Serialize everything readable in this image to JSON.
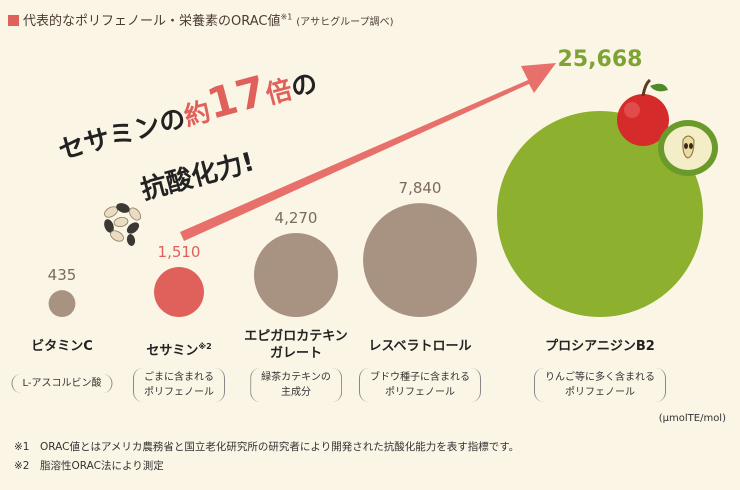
{
  "header": {
    "title": "代表的なポリフェノール・栄養素のORAC値",
    "title_note": "※1",
    "source": "(アサヒグループ調べ)"
  },
  "annotation": {
    "line1_prefix": "セサミンの",
    "line1_emph_a": "約",
    "line1_emph_b": "17",
    "line1_emph_c": "倍",
    "line1_suffix": "の",
    "line2": "抗酸化力!"
  },
  "chart_data": {
    "type": "bubble",
    "unit": "(μmolTE/mol)",
    "items": [
      {
        "name": "ビタミンC",
        "name_note": "",
        "value": 435,
        "value_label": "435",
        "desc_lines": [
          "L-アスコルビン酸"
        ],
        "color": "#a89282"
      },
      {
        "name": "セサミン",
        "name_note": "※2",
        "value": 1510,
        "value_label": "1,510",
        "desc_lines": [
          "ごまに含まれる",
          "ポリフェノール"
        ],
        "color": "#e0615b"
      },
      {
        "name_lines": [
          "エピガロカテキン",
          "ガレート"
        ],
        "name": "エピガロカテキンガレート",
        "name_note": "",
        "value": 4270,
        "value_label": "4,270",
        "desc_lines": [
          "緑茶カテキンの",
          "主成分"
        ],
        "color": "#a89282"
      },
      {
        "name": "レスベラトロール",
        "name_note": "",
        "value": 7840,
        "value_label": "7,840",
        "desc_lines": [
          "ブドウ種子に含まれる",
          "ポリフェノール"
        ],
        "color": "#a89282"
      },
      {
        "name": "プロシアニジンB2",
        "name_note": "",
        "value": 25668,
        "value_label": "25,668",
        "desc_lines": [
          "りんご等に多く含まれる",
          "ポリフェノール"
        ],
        "color": "#8db02e"
      }
    ]
  },
  "footnotes": [
    "※1　ORAC値とはアメリカ農務省と国立老化研究所の研究者により開発された抗酸化能力を表す指標です。",
    "※2　脂溶性ORAC法により測定"
  ],
  "colors": {
    "background": "#fbf5e6",
    "accent": "#e0615b",
    "neutral": "#a89282",
    "highlight": "#8db02e"
  }
}
